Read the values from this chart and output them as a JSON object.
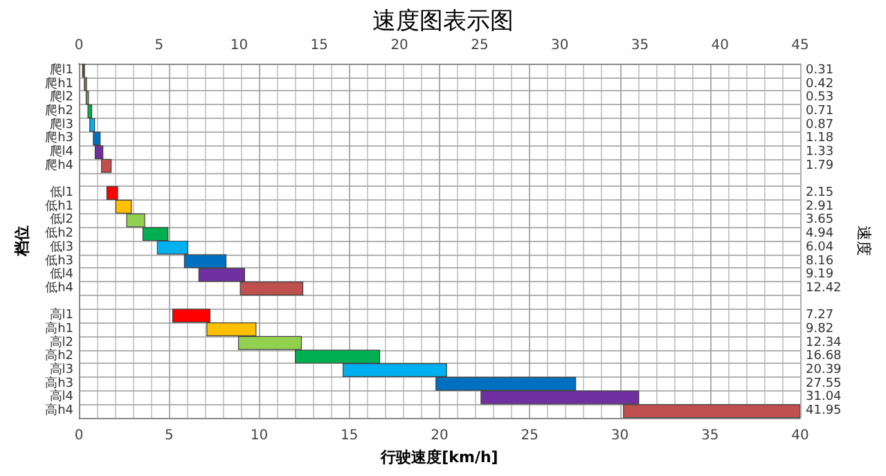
{
  "chart_data": {
    "type": "bar",
    "orientation": "horizontal",
    "title": "速度图表示图",
    "xlabel": "行驶速度[km/h]",
    "ylabel": "档位",
    "y2label": "速度",
    "categories": [
      "爬l1",
      "爬h1",
      "爬l2",
      "爬h2",
      "爬l3",
      "爬h3",
      "爬l4",
      "爬h4",
      null,
      "低l1",
      "低h1",
      "低l2",
      "低h2",
      "低l3",
      "低h3",
      "低l4",
      "低h4",
      null,
      "高l1",
      "高h1",
      "高l2",
      "高h2",
      "高l3",
      "高h3",
      "高l4",
      "高h4"
    ],
    "y2_categories": [
      "0.31",
      "0.42",
      "0.53",
      "0.71",
      "0.87",
      "1.18",
      "1.33",
      "1.79",
      null,
      "2.15",
      "2.91",
      "3.65",
      "4.94",
      "6.04",
      "8.16",
      "9.19",
      "12.42",
      null,
      "7.27",
      "9.82",
      "12.34",
      "16.68",
      "20.39",
      "27.55",
      "31.04",
      "41.95"
    ],
    "base": [
      0.2,
      0.3,
      0.4,
      0.5,
      0.6,
      0.8,
      0.9,
      1.25,
      null,
      1.55,
      2.05,
      2.65,
      3.55,
      4.35,
      5.85,
      6.65,
      8.95,
      null,
      5.2,
      7.1,
      8.85,
      12.0,
      14.65,
      19.8,
      22.3,
      30.2
    ],
    "values": [
      0.11,
      0.12,
      0.13,
      0.21,
      0.27,
      0.38,
      0.43,
      0.54,
      null,
      0.6,
      0.86,
      1.0,
      1.39,
      1.69,
      2.31,
      2.54,
      3.47,
      null,
      2.07,
      2.72,
      3.49,
      4.68,
      5.74,
      7.75,
      8.74,
      9.8
    ],
    "colors": [
      "#7f3f1f",
      "#8a7a2a",
      "#7a9a50",
      "#00b050",
      "#00b0f0",
      "#0070c0",
      "#7030a0",
      "#c0504d",
      null,
      "#ff0000",
      "#ffc000",
      "#92d050",
      "#00b050",
      "#00b0f0",
      "#0070c0",
      "#7030a0",
      "#c0504d",
      null,
      "#ff0000",
      "#ffc000",
      "#92d050",
      "#00b050",
      "#00b0f0",
      "#0070c0",
      "#7030a0",
      "#c0504d"
    ],
    "xlim": [
      0,
      40
    ],
    "xticks": [
      0,
      5,
      10,
      15,
      20,
      25,
      30,
      35,
      40
    ],
    "x2lim": [
      0,
      45
    ],
    "x2ticks": [
      0,
      5,
      10,
      15,
      20,
      25,
      30,
      35,
      40,
      45
    ],
    "grid": true
  }
}
